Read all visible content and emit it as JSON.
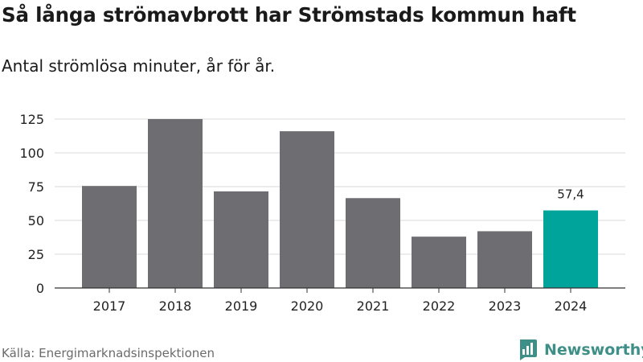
{
  "chart_data": {
    "type": "bar",
    "title": "Så långa strömavbrott har Strömstads kommun haft",
    "subtitle": "Antal strömlösa minuter, år för år.",
    "categories": [
      "2017",
      "2018",
      "2019",
      "2020",
      "2021",
      "2022",
      "2023",
      "2024"
    ],
    "values": [
      75.5,
      125,
      71.5,
      116,
      66.5,
      38,
      42,
      57.4
    ],
    "ylim": [
      0,
      125
    ],
    "yticks": [
      0,
      25,
      50,
      75,
      100,
      125
    ],
    "ytick_labels": [
      "0",
      "25",
      "50",
      "75",
      "100",
      "125"
    ],
    "grid": true,
    "data_labels": [
      {
        "index": 7,
        "text": "57,4"
      }
    ],
    "colors": {
      "default": "#6e6d72",
      "highlight": "#00a49a",
      "highlight_index": 7,
      "grid": "#d9d9d9",
      "axis": "#333333"
    }
  },
  "footer": {
    "source": "Källa: Energimarknadsinspektionen",
    "brand": "Newsworthy",
    "brand_icon": "newsworthy-logo-icon"
  }
}
